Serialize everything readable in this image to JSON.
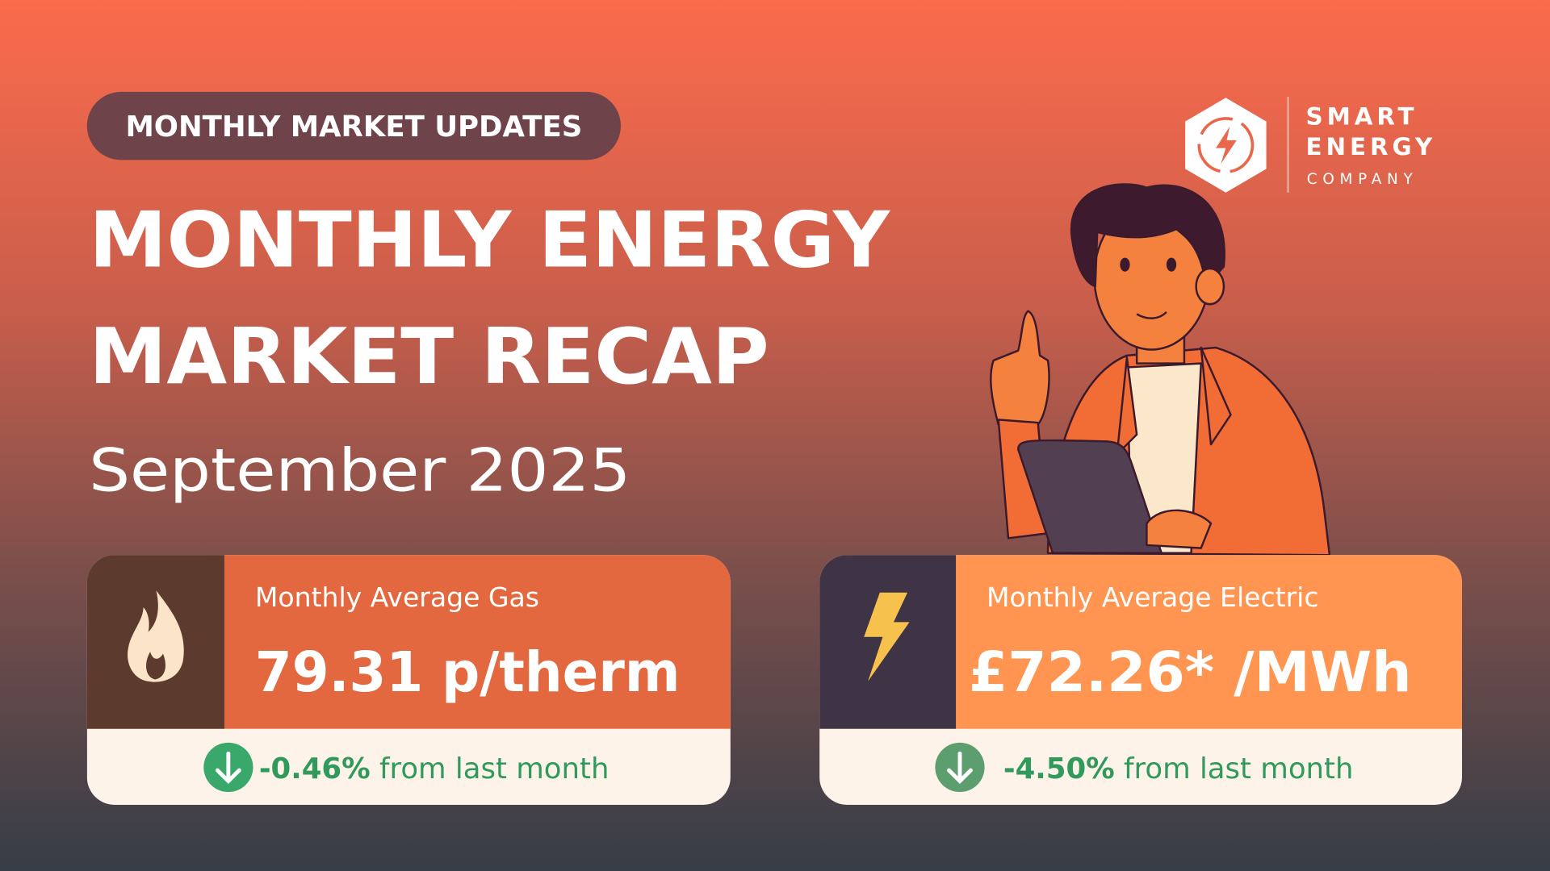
{
  "badge": "MONTHLY MARKET UPDATES",
  "title": {
    "line1": "MONTHLY ENERGY",
    "line2": "MARKET RECAP"
  },
  "subtitle": "September 2025",
  "logo": {
    "line1": "SMART",
    "line2": "ENERGY",
    "line3": "COMPANY"
  },
  "cards": [
    {
      "label": "Monthly Average Gas",
      "value": "79.31 p/therm",
      "change": "-0.46%",
      "change_text": "from last month"
    },
    {
      "label": "Monthly Average Electric",
      "value": "£72.26* /MWh",
      "change": "-4.50%",
      "change_text": "from last month"
    }
  ]
}
